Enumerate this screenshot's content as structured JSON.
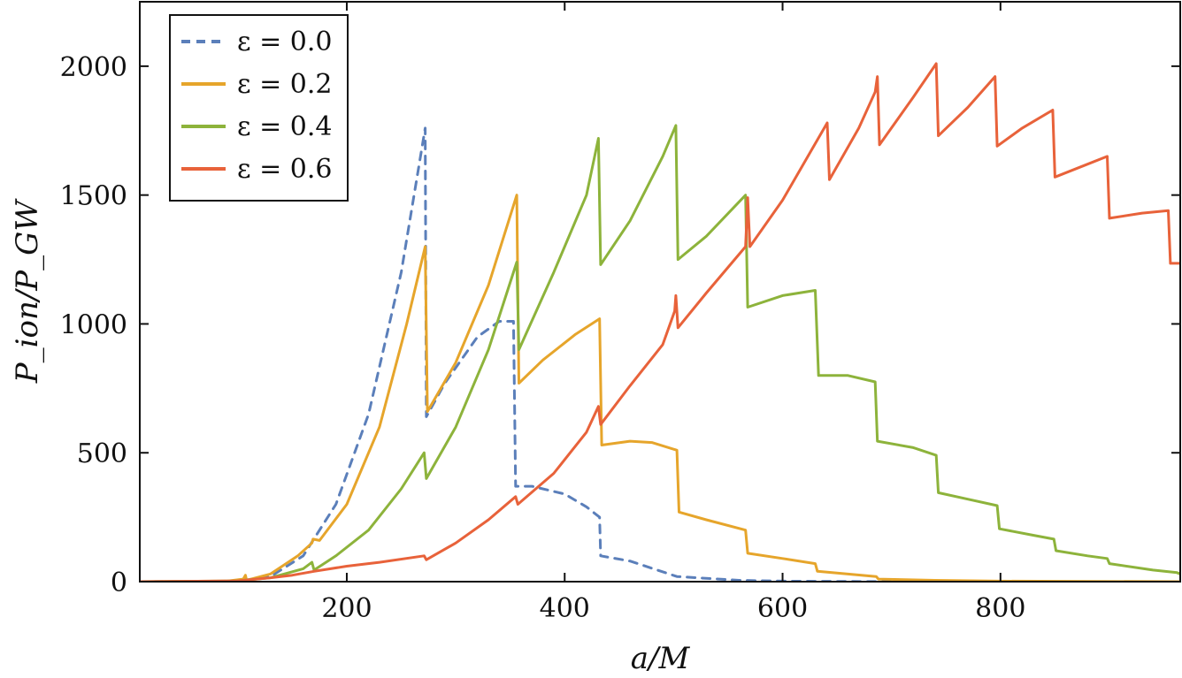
{
  "chart_data": {
    "type": "line",
    "xlabel": "a/M",
    "ylabel": "P_ion/P_GW",
    "xlim": [
      10,
      965
    ],
    "ylim": [
      0,
      2250
    ],
    "xticks": [
      "200",
      "400",
      "600",
      "800"
    ],
    "yticks": [
      "0",
      "500",
      "1000",
      "1500",
      "2000"
    ],
    "grid": false,
    "legend_position": "top-left",
    "series": [
      {
        "name": "ε = 0.0",
        "color": "#5b7fba",
        "dash": true,
        "points": [
          [
            10,
            0
          ],
          [
            100,
            2
          ],
          [
            130,
            20
          ],
          [
            160,
            100
          ],
          [
            190,
            300
          ],
          [
            220,
            650
          ],
          [
            250,
            1200
          ],
          [
            272,
            1760
          ],
          [
            273,
            640
          ],
          [
            290,
            770
          ],
          [
            320,
            950
          ],
          [
            340,
            1010
          ],
          [
            353,
            1010
          ],
          [
            355,
            370
          ],
          [
            370,
            370
          ],
          [
            400,
            340
          ],
          [
            420,
            290
          ],
          [
            432,
            250
          ],
          [
            433,
            100
          ],
          [
            460,
            80
          ],
          [
            503,
            20
          ],
          [
            560,
            5
          ],
          [
            600,
            2
          ],
          [
            700,
            0
          ],
          [
            965,
            0
          ]
        ]
      },
      {
        "name": "ε = 0.2",
        "color": "#e6a52b",
        "dash": false,
        "points": [
          [
            10,
            0
          ],
          [
            90,
            2
          ],
          [
            105,
            10
          ],
          [
            107,
            25
          ],
          [
            108,
            5
          ],
          [
            130,
            30
          ],
          [
            155,
            100
          ],
          [
            168,
            150
          ],
          [
            169,
            165
          ],
          [
            175,
            160
          ],
          [
            200,
            300
          ],
          [
            230,
            600
          ],
          [
            255,
            1000
          ],
          [
            272,
            1300
          ],
          [
            274,
            660
          ],
          [
            300,
            850
          ],
          [
            330,
            1150
          ],
          [
            356,
            1500
          ],
          [
            358,
            770
          ],
          [
            380,
            860
          ],
          [
            410,
            960
          ],
          [
            432,
            1020
          ],
          [
            434,
            530
          ],
          [
            460,
            545
          ],
          [
            480,
            540
          ],
          [
            503,
            510
          ],
          [
            505,
            270
          ],
          [
            530,
            240
          ],
          [
            566,
            200
          ],
          [
            568,
            110
          ],
          [
            600,
            90
          ],
          [
            630,
            70
          ],
          [
            632,
            40
          ],
          [
            686,
            20
          ],
          [
            688,
            10
          ],
          [
            740,
            5
          ],
          [
            800,
            2
          ],
          [
            965,
            0
          ]
        ]
      },
      {
        "name": "ε = 0.4",
        "color": "#8db33b",
        "dash": false,
        "points": [
          [
            10,
            0
          ],
          [
            100,
            3
          ],
          [
            130,
            15
          ],
          [
            160,
            50
          ],
          [
            168,
            75
          ],
          [
            170,
            45
          ],
          [
            190,
            100
          ],
          [
            220,
            200
          ],
          [
            250,
            360
          ],
          [
            271,
            500
          ],
          [
            273,
            400
          ],
          [
            300,
            600
          ],
          [
            330,
            900
          ],
          [
            356,
            1240
          ],
          [
            358,
            900
          ],
          [
            390,
            1200
          ],
          [
            420,
            1500
          ],
          [
            431,
            1720
          ],
          [
            433,
            1230
          ],
          [
            460,
            1400
          ],
          [
            490,
            1650
          ],
          [
            502,
            1770
          ],
          [
            504,
            1250
          ],
          [
            530,
            1340
          ],
          [
            566,
            1500
          ],
          [
            568,
            1065
          ],
          [
            600,
            1110
          ],
          [
            630,
            1130
          ],
          [
            633,
            800
          ],
          [
            660,
            800
          ],
          [
            685,
            775
          ],
          [
            687,
            545
          ],
          [
            720,
            520
          ],
          [
            741,
            490
          ],
          [
            743,
            345
          ],
          [
            770,
            320
          ],
          [
            797,
            295
          ],
          [
            799,
            205
          ],
          [
            830,
            180
          ],
          [
            849,
            165
          ],
          [
            851,
            120
          ],
          [
            880,
            100
          ],
          [
            898,
            90
          ],
          [
            900,
            70
          ],
          [
            940,
            45
          ],
          [
            962,
            35
          ],
          [
            965,
            30
          ]
        ]
      },
      {
        "name": "ε = 0.6",
        "color": "#e8623a",
        "dash": false,
        "points": [
          [
            10,
            0
          ],
          [
            100,
            3
          ],
          [
            130,
            15
          ],
          [
            150,
            25
          ],
          [
            170,
            40
          ],
          [
            200,
            60
          ],
          [
            230,
            75
          ],
          [
            271,
            100
          ],
          [
            273,
            85
          ],
          [
            300,
            150
          ],
          [
            330,
            240
          ],
          [
            355,
            330
          ],
          [
            357,
            300
          ],
          [
            390,
            420
          ],
          [
            420,
            580
          ],
          [
            431,
            680
          ],
          [
            433,
            610
          ],
          [
            460,
            760
          ],
          [
            490,
            920
          ],
          [
            501,
            1050
          ],
          [
            502,
            1110
          ],
          [
            504,
            985
          ],
          [
            530,
            1120
          ],
          [
            566,
            1300
          ],
          [
            568,
            1490
          ],
          [
            570,
            1300
          ],
          [
            600,
            1480
          ],
          [
            630,
            1700
          ],
          [
            641,
            1780
          ],
          [
            643,
            1560
          ],
          [
            670,
            1760
          ],
          [
            685,
            1900
          ],
          [
            687,
            1960
          ],
          [
            689,
            1695
          ],
          [
            720,
            1880
          ],
          [
            741,
            2010
          ],
          [
            743,
            1730
          ],
          [
            770,
            1840
          ],
          [
            795,
            1960
          ],
          [
            797,
            1690
          ],
          [
            820,
            1760
          ],
          [
            848,
            1830
          ],
          [
            850,
            1570
          ],
          [
            880,
            1620
          ],
          [
            898,
            1650
          ],
          [
            900,
            1410
          ],
          [
            930,
            1430
          ],
          [
            954,
            1440
          ],
          [
            956,
            1235
          ],
          [
            965,
            1235
          ]
        ]
      }
    ]
  }
}
